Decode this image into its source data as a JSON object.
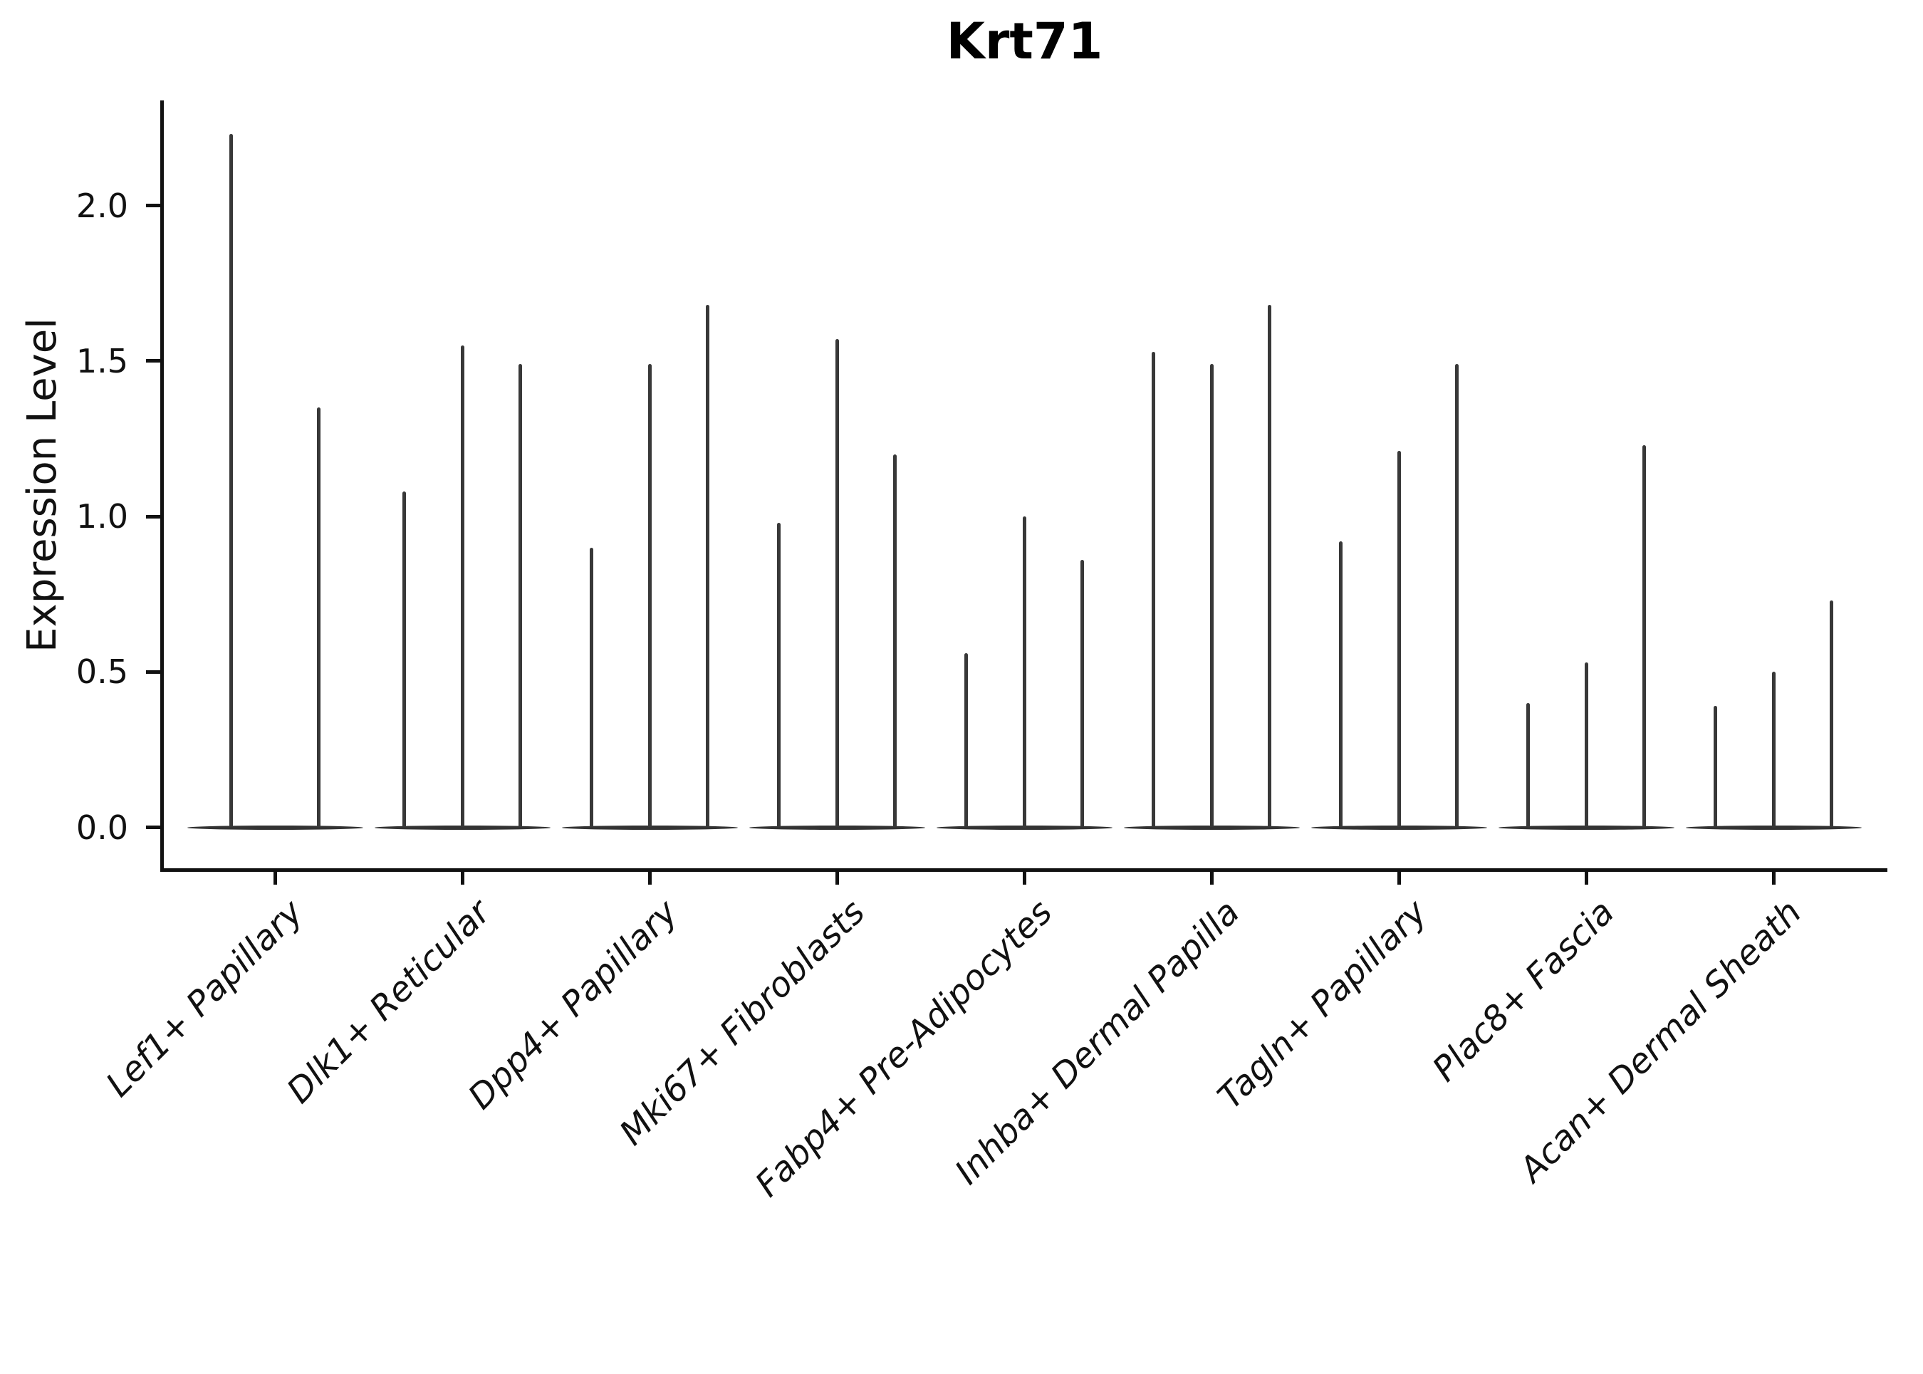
{
  "title": "Krt71",
  "colors": {
    "violin": "#383838",
    "violin_body": "#333333",
    "axis": "#111111",
    "text": "#111111",
    "background": "#ffffff"
  },
  "chart_data": {
    "type": "violin",
    "title": "Krt71",
    "xlabel": "",
    "ylabel": "Expression Level",
    "ylim": [
      -0.13,
      2.34
    ],
    "grid": false,
    "legend": "none",
    "y_ticks": [
      0.0,
      0.5,
      1.0,
      1.5,
      2.0
    ],
    "y_tick_labels": [
      "0.0",
      "0.5",
      "1.0",
      "1.5",
      "2.0"
    ],
    "categories": [
      "Lef1+ Papillary",
      "Dlk1+ Reticular",
      "Dpp4+ Papillary",
      "Mki67+ Fibroblasts",
      "Fabp4+ Pre-Adipocytes",
      "Inhba+ Dermal Papilla",
      "Tagln+ Papillary",
      "Plac8+ Fascia",
      "Acan+ Dermal Sheath"
    ],
    "groups": [
      {
        "label": "Lef1+ Papillary",
        "baseline_value": 0.0,
        "spike_values": [
          2.23,
          1.35
        ]
      },
      {
        "label": "Dlk1+ Reticular",
        "baseline_value": 0.0,
        "spike_values": [
          1.08,
          1.55,
          1.49
        ]
      },
      {
        "label": "Dpp4+ Papillary",
        "baseline_value": 0.0,
        "spike_values": [
          0.9,
          1.49,
          1.68
        ]
      },
      {
        "label": "Mki67+ Fibroblasts",
        "baseline_value": 0.0,
        "spike_values": [
          0.98,
          1.57,
          1.2
        ]
      },
      {
        "label": "Fabp4+ Pre-Adipocytes",
        "baseline_value": 0.0,
        "spike_values": [
          0.56,
          1.0,
          0.86
        ]
      },
      {
        "label": "Inhba+ Dermal Papilla",
        "baseline_value": 0.0,
        "spike_values": [
          1.53,
          1.49,
          1.68
        ]
      },
      {
        "label": "Tagln+ Papillary",
        "baseline_value": 0.0,
        "spike_values": [
          0.92,
          1.21,
          1.49
        ]
      },
      {
        "label": "Plac8+ Fascia",
        "baseline_value": 0.0,
        "spike_values": [
          0.4,
          0.53,
          1.23
        ]
      },
      {
        "label": "Acan+ Dermal Sheath",
        "baseline_value": 0.0,
        "spike_values": [
          0.39,
          0.5,
          0.73
        ]
      }
    ]
  }
}
